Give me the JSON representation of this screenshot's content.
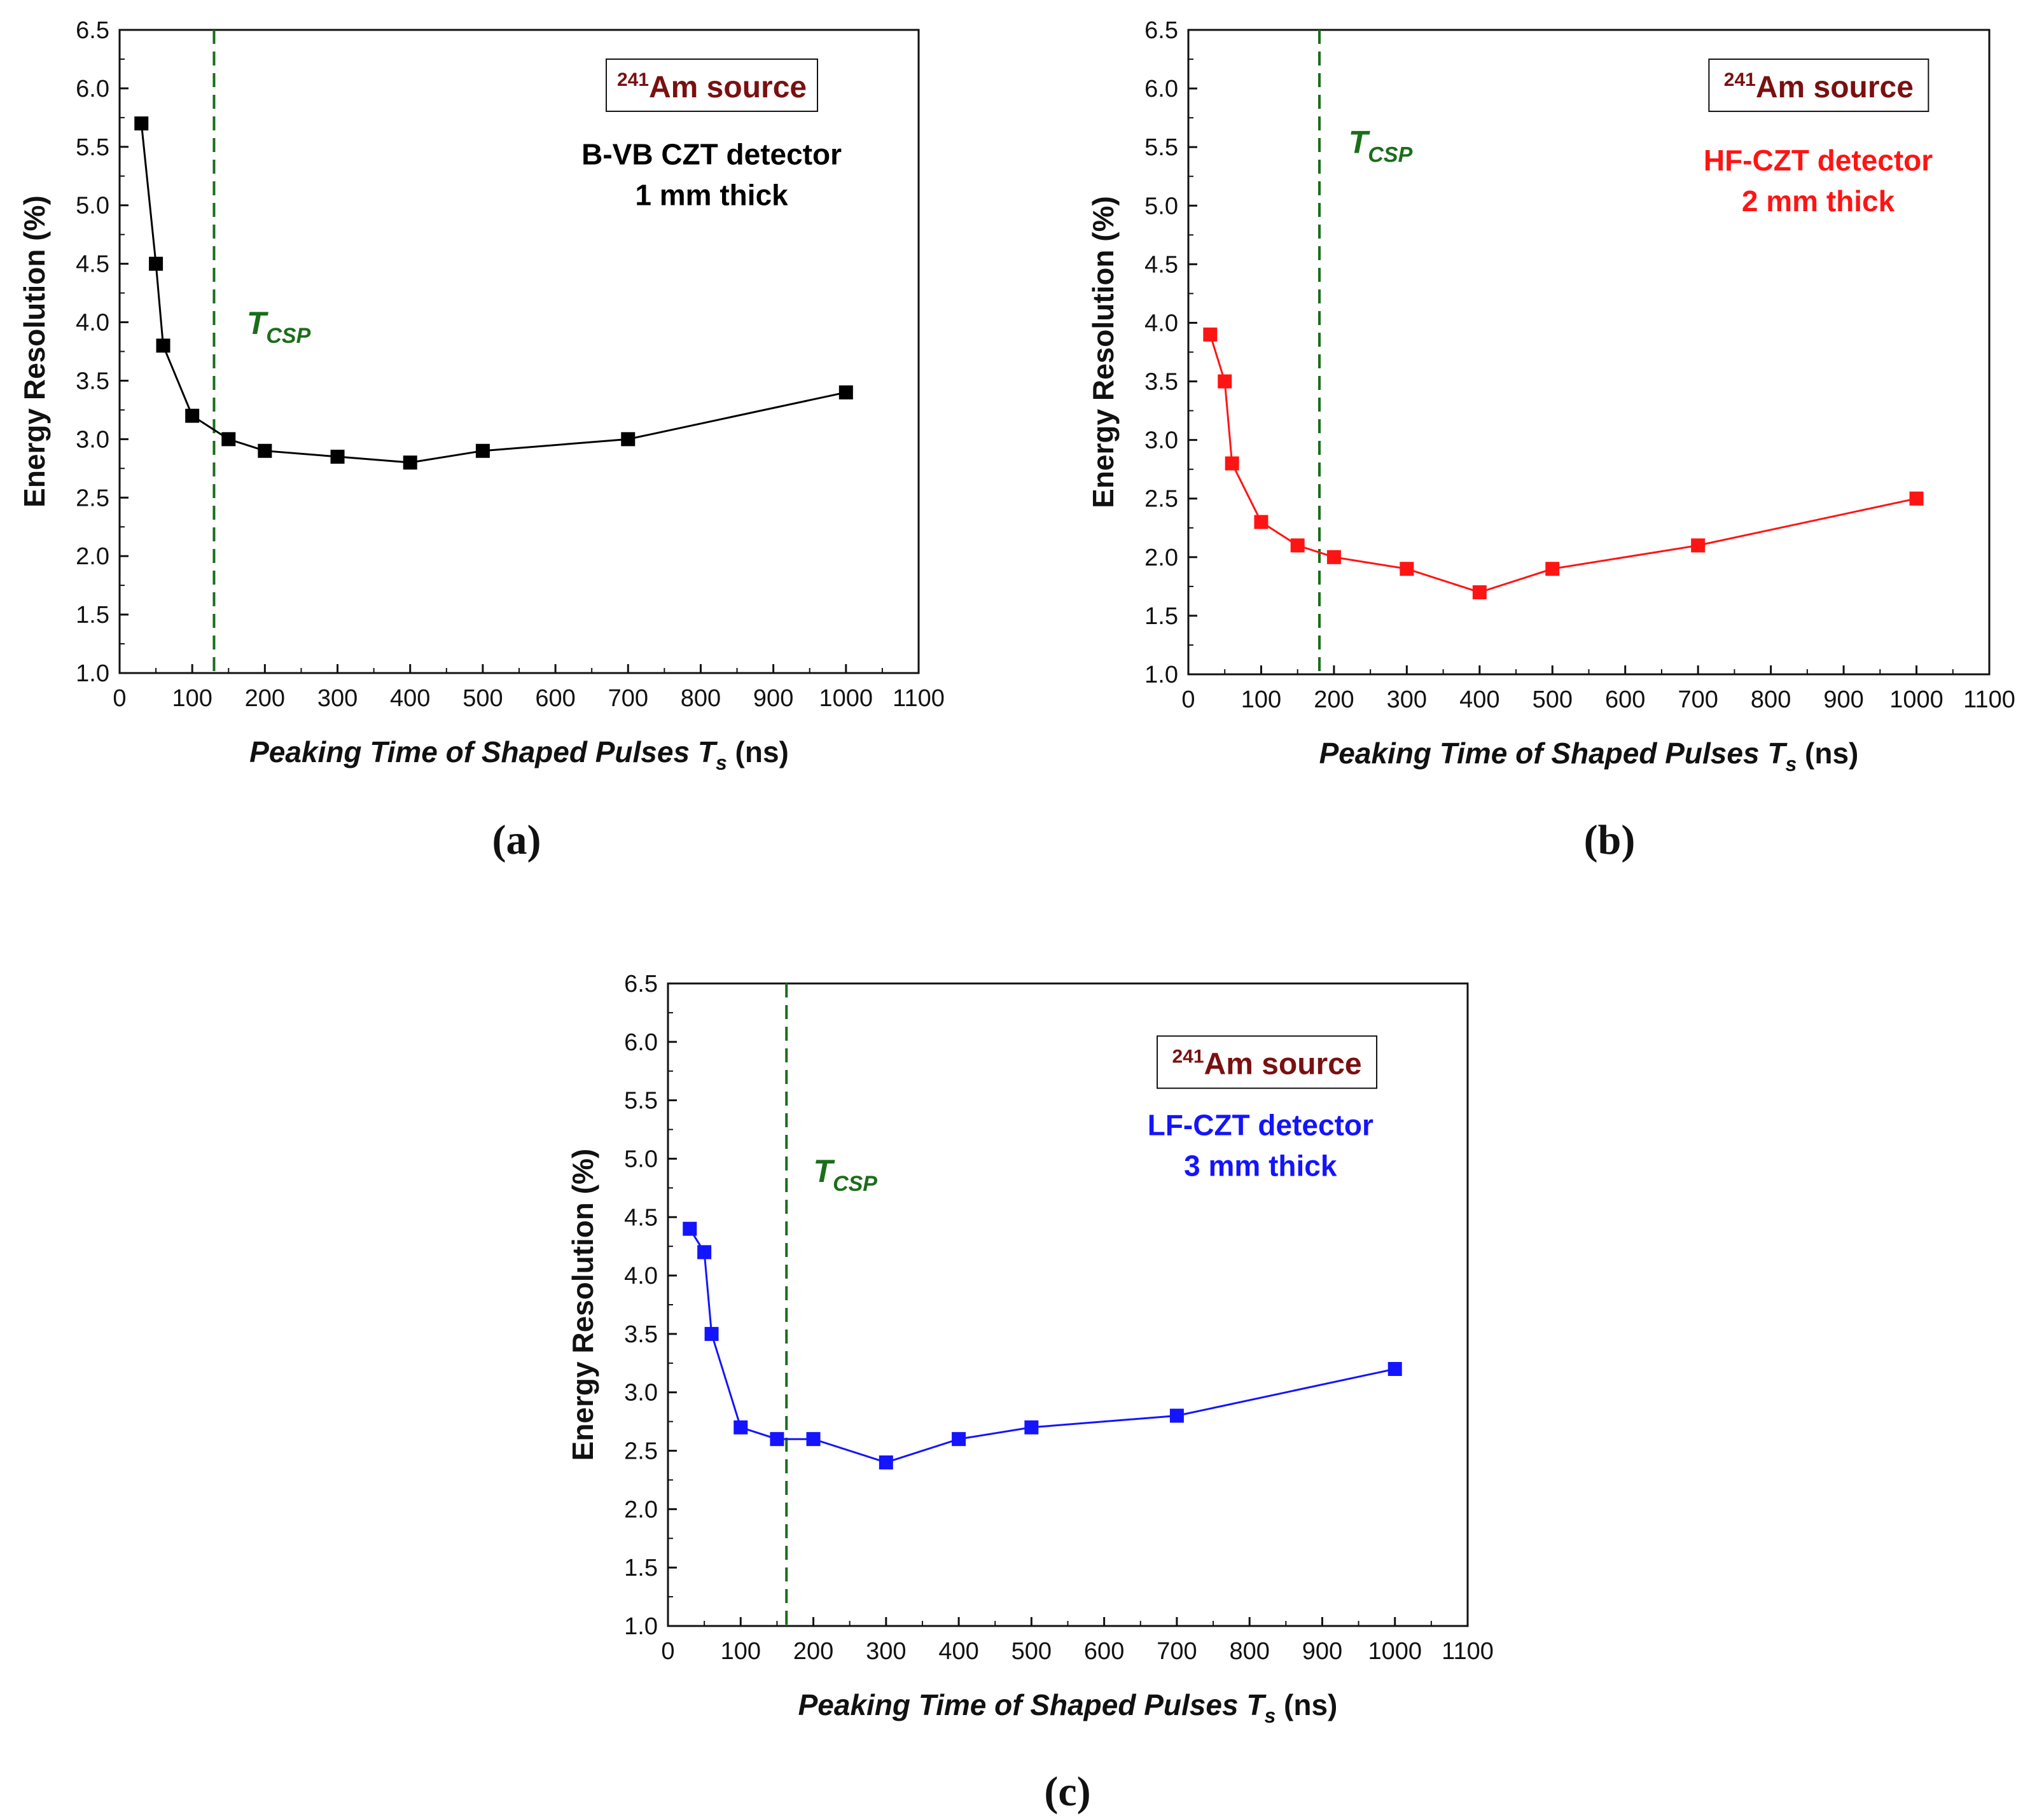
{
  "colors": {
    "tcsp": "#1a6e1a",
    "source": "#7a1010",
    "axis": "#111111"
  },
  "chart_data": [
    {
      "type": "line",
      "panel_label": "(a)",
      "xlabel_main": "Peaking Time of Shaped Pulses ",
      "xlabel_var": "T",
      "xlabel_sub": "s",
      "xlabel_unit": " (ns)",
      "ylabel": "Energy Resolution (%)",
      "xlim": [
        0,
        1100
      ],
      "ylim": [
        1.0,
        6.5
      ],
      "xticks": [
        "0",
        "100",
        "200",
        "300",
        "400",
        "500",
        "600",
        "700",
        "800",
        "900",
        "1000",
        "1100"
      ],
      "yticks": [
        "1.0",
        "1.5",
        "2.0",
        "2.5",
        "3.0",
        "3.5",
        "4.0",
        "4.5",
        "5.0",
        "5.5",
        "6.0",
        "6.5"
      ],
      "color": "#000000",
      "source_sup": "241",
      "source_label": "Am source",
      "detector_line1": "B-VB CZT detector",
      "detector_line2": "1 mm thick",
      "tcsp_main": "T",
      "tcsp_sub": "CSP",
      "tcsp_x": 130,
      "series": [
        {
          "name": "B-VB CZT detector 1 mm thick",
          "x": [
            30,
            50,
            60,
            100,
            150,
            200,
            300,
            400,
            500,
            700,
            1000
          ],
          "y": [
            5.7,
            4.5,
            3.8,
            3.2,
            3.0,
            2.9,
            2.85,
            2.8,
            2.9,
            3.0,
            3.4
          ]
        }
      ]
    },
    {
      "type": "line",
      "panel_label": "(b)",
      "xlabel_main": "Peaking Time of Shaped Pulses ",
      "xlabel_var": "T",
      "xlabel_sub": "s",
      "xlabel_unit": " (ns)",
      "ylabel": "Energy Resolution (%)",
      "xlim": [
        0,
        1100
      ],
      "ylim": [
        1.0,
        6.5
      ],
      "xticks": [
        "0",
        "100",
        "200",
        "300",
        "400",
        "500",
        "600",
        "700",
        "800",
        "900",
        "1000",
        "1100"
      ],
      "yticks": [
        "1.0",
        "1.5",
        "2.0",
        "2.5",
        "3.0",
        "3.5",
        "4.0",
        "4.5",
        "5.0",
        "5.5",
        "6.0",
        "6.5"
      ],
      "color": "#ff1414",
      "source_sup": "241",
      "source_label": "Am source",
      "detector_line1": "HF-CZT detector",
      "detector_line2": "2 mm thick",
      "tcsp_main": "T",
      "tcsp_sub": "CSP",
      "tcsp_x": 180,
      "series": [
        {
          "name": "HF-CZT detector 2 mm thick",
          "x": [
            30,
            50,
            60,
            100,
            150,
            200,
            300,
            400,
            500,
            700,
            1000
          ],
          "y": [
            3.9,
            3.5,
            2.8,
            2.3,
            2.1,
            2.0,
            1.9,
            1.7,
            1.9,
            2.1,
            2.5
          ]
        }
      ]
    },
    {
      "type": "line",
      "panel_label": "(c)",
      "xlabel_main": "Peaking Time of Shaped Pulses ",
      "xlabel_var": "T",
      "xlabel_sub": "s",
      "xlabel_unit": " (ns)",
      "ylabel": "Energy Resolution (%)",
      "xlim": [
        0,
        1100
      ],
      "ylim": [
        1.0,
        6.5
      ],
      "xticks": [
        "0",
        "100",
        "200",
        "300",
        "400",
        "500",
        "600",
        "700",
        "800",
        "900",
        "1000",
        "1100"
      ],
      "yticks": [
        "1.0",
        "1.5",
        "2.0",
        "2.5",
        "3.0",
        "3.5",
        "4.0",
        "4.5",
        "5.0",
        "5.5",
        "6.0",
        "6.5"
      ],
      "color": "#1414ff",
      "source_sup": "241",
      "source_label": "Am source",
      "detector_line1": "LF-CZT detector",
      "detector_line2": "3 mm thick",
      "tcsp_main": "T",
      "tcsp_sub": "CSP",
      "tcsp_x": 163,
      "series": [
        {
          "name": "LF-CZT detector 3 mm thick",
          "x": [
            30,
            50,
            60,
            100,
            150,
            200,
            300,
            400,
            500,
            700,
            1000
          ],
          "y": [
            4.4,
            4.2,
            3.5,
            2.7,
            2.6,
            2.6,
            2.4,
            2.6,
            2.7,
            2.8,
            3.2
          ]
        }
      ]
    }
  ]
}
